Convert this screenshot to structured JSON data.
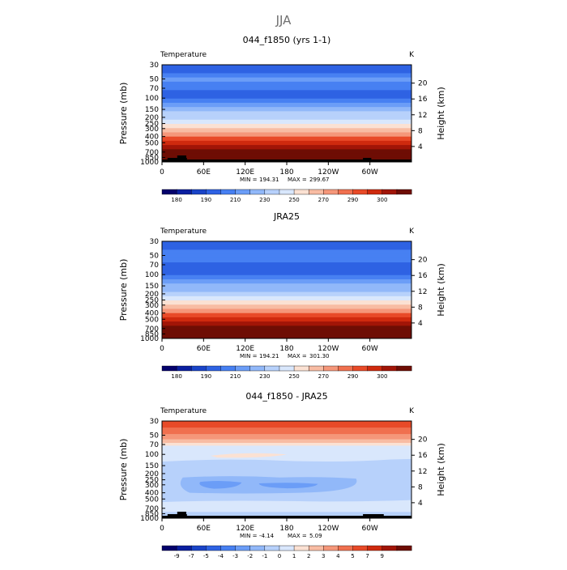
{
  "page_title": "JJA",
  "colors": {
    "temp_palette": [
      "#04016c",
      "#0a1fa0",
      "#1a44c8",
      "#2e62e3",
      "#4780f2",
      "#6b9df7",
      "#91b8f9",
      "#b7d1fb",
      "#d9e7fc",
      "#fbe1d3",
      "#f8bca3",
      "#f5977a",
      "#f0704f",
      "#e84a28",
      "#cf2a0e",
      "#a11507",
      "#6e0d04"
    ],
    "diff_palette": [
      "#04016c",
      "#0a1fa0",
      "#1a44c8",
      "#2e62e3",
      "#4780f2",
      "#6b9df7",
      "#91b8f9",
      "#b7d1fb",
      "#d9e7fc",
      "#fbe1d3",
      "#f8bca3",
      "#f5977a",
      "#f0704f",
      "#e84a28",
      "#cf2a0e",
      "#a11507",
      "#6e0d04"
    ],
    "terrain": "#000000"
  },
  "chart_data": [
    {
      "type": "heatmap",
      "title": "044_f1850 (yrs 1-1)",
      "variable_label": "Temperature",
      "units": "K",
      "ylabel": "Pressure (mb)",
      "y2label": "Height (km)",
      "pressure_ticks": [
        "30",
        "50",
        "70",
        "100",
        "150",
        "200",
        "250",
        "300",
        "400",
        "500",
        "700",
        "850",
        "1000"
      ],
      "height_ticks": [
        "20",
        "16",
        "12",
        "8",
        "4"
      ],
      "lon_ticks": [
        "0",
        "60E",
        "120E",
        "180",
        "120W",
        "60W"
      ],
      "stats": {
        "min_label": "MIN =",
        "min": "194.31",
        "max_label": "MAX =",
        "max": "299.67"
      },
      "colorbar_labels": [
        "180",
        "190",
        "210",
        "230",
        "250",
        "270",
        "290",
        "300"
      ],
      "levels": [
        194.31,
        198,
        204,
        212,
        206,
        201,
        197,
        199,
        206,
        214,
        222,
        231,
        240,
        249,
        258,
        266,
        274,
        281,
        287,
        292,
        296,
        298,
        299.5
      ],
      "terrain": true
    },
    {
      "type": "heatmap",
      "title": "JRA25",
      "variable_label": "Temperature",
      "units": "K",
      "ylabel": "Pressure (mb)",
      "y2label": "Height (km)",
      "pressure_ticks": [
        "30",
        "50",
        "70",
        "100",
        "150",
        "200",
        "250",
        "300",
        "400",
        "500",
        "700",
        "850",
        "1000"
      ],
      "height_ticks": [
        "20",
        "16",
        "12",
        "8",
        "4"
      ],
      "lon_ticks": [
        "0",
        "60E",
        "120E",
        "180",
        "120W",
        "60W"
      ],
      "stats": {
        "min_label": "MIN =",
        "min": "194.21",
        "max_label": "MAX =",
        "max": "301.30"
      },
      "colorbar_labels": [
        "180",
        "190",
        "210",
        "230",
        "250",
        "270",
        "290",
        "300"
      ],
      "levels": [
        194.21,
        198,
        203,
        210,
        205,
        200,
        196,
        198,
        205,
        213,
        221,
        230,
        239,
        248,
        257,
        265,
        273,
        281,
        288,
        293,
        297,
        300,
        301
      ],
      "terrain": false
    },
    {
      "type": "heatmap",
      "title": "044_f1850 - JRA25",
      "variable_label": "Temperature",
      "units": "K",
      "ylabel": "Pressure (mb)",
      "y2label": "Height (km)",
      "pressure_ticks": [
        "30",
        "50",
        "70",
        "100",
        "150",
        "200",
        "250",
        "300",
        "400",
        "500",
        "700",
        "850",
        "1000"
      ],
      "height_ticks": [
        "20",
        "16",
        "12",
        "8",
        "4"
      ],
      "lon_ticks": [
        "0",
        "60E",
        "120E",
        "180",
        "120W",
        "60W"
      ],
      "stats": {
        "min_label": "MIN =",
        "min": "-4.14",
        "max_label": "MAX =",
        "max": "5.09"
      },
      "colorbar_labels": [
        "-9",
        "-7",
        "-5",
        "-4",
        "-3",
        "-2",
        "-1",
        "0",
        "1",
        "2",
        "3",
        "4",
        "5",
        "7",
        "9"
      ],
      "terrain": true
    }
  ]
}
